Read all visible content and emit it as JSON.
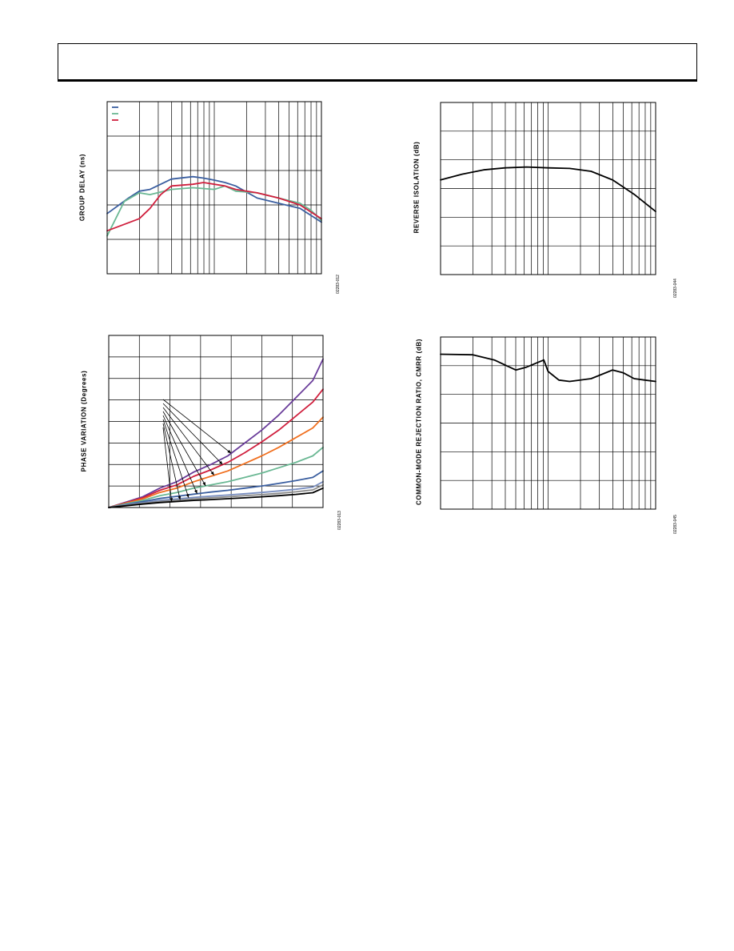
{
  "page": {
    "header_box": ""
  },
  "chart_data": [
    {
      "id": "group-delay",
      "type": "line",
      "title": "",
      "ylabel": "GROUP DELAY (ns)",
      "xlabel": "",
      "x_scale": "log",
      "x_decades": 2,
      "y_divisions": 5,
      "figure_number": "02283-012",
      "legend": {
        "position": "top-left",
        "entries": [
          "",
          "",
          ""
        ]
      },
      "series": [
        {
          "color": "#3b5fa0",
          "x": [
            0,
            0.1,
            0.15,
            0.2,
            0.3,
            0.4,
            0.45,
            0.5,
            0.55,
            0.6,
            0.7,
            0.8,
            0.9,
            0.95,
            1.0
          ],
          "y": [
            1.75,
            2.2,
            2.4,
            2.45,
            2.75,
            2.82,
            2.78,
            2.72,
            2.65,
            2.55,
            2.2,
            2.05,
            1.9,
            1.7,
            1.5
          ]
        },
        {
          "color": "#6bb894",
          "x": [
            0,
            0.08,
            0.15,
            0.2,
            0.3,
            0.4,
            0.5,
            0.55,
            0.6,
            0.7,
            0.8,
            0.9,
            0.95,
            1.0
          ],
          "y": [
            1.1,
            2.1,
            2.35,
            2.3,
            2.45,
            2.5,
            2.45,
            2.55,
            2.4,
            2.35,
            2.2,
            2.05,
            1.85,
            1.55
          ]
        },
        {
          "color": "#d0203e",
          "x": [
            0,
            0.15,
            0.2,
            0.25,
            0.3,
            0.4,
            0.45,
            0.55,
            0.6,
            0.7,
            0.8,
            0.9,
            0.95,
            1.0
          ],
          "y": [
            1.25,
            1.6,
            1.9,
            2.3,
            2.55,
            2.6,
            2.65,
            2.55,
            2.45,
            2.35,
            2.2,
            2.0,
            1.8,
            1.6
          ]
        }
      ]
    },
    {
      "id": "reverse-isolation",
      "type": "line",
      "title": "",
      "ylabel": "REVERSE ISOLATION (dB)",
      "xlabel": "",
      "x_scale": "log",
      "x_decades": 2,
      "y_divisions": 6,
      "figure_number": "02283-044",
      "series": [
        {
          "color": "#000000",
          "x": [
            0,
            0.1,
            0.2,
            0.3,
            0.4,
            0.5,
            0.6,
            0.7,
            0.8,
            0.9,
            1.0
          ],
          "y": [
            3.3,
            3.5,
            3.65,
            3.72,
            3.75,
            3.72,
            3.7,
            3.6,
            3.3,
            2.8,
            2.2
          ]
        }
      ]
    },
    {
      "id": "phase-variation",
      "type": "line",
      "title": "",
      "ylabel": "PHASE VARIATION (Degrees)",
      "xlabel": "",
      "x_scale": "linear",
      "x_divisions": 7,
      "y_divisions": 8,
      "figure_number": "02283-013",
      "series": [
        {
          "color": "#6a3d9a",
          "x": [
            0,
            0.5,
            1,
            1.5,
            2,
            2.5,
            3,
            3.5,
            4,
            4.5,
            5,
            5.5,
            6,
            6.3
          ],
          "y": [
            0,
            0.25,
            0.5,
            0.9,
            1.2,
            1.65,
            2.0,
            2.4,
            3.0,
            3.6,
            4.3,
            5.1,
            5.9,
            6.9
          ]
        },
        {
          "color": "#d0203e",
          "x": [
            0,
            0.5,
            1,
            1.5,
            2,
            2.5,
            3,
            3.5,
            4,
            4.5,
            5,
            5.5,
            6,
            6.3
          ],
          "y": [
            0,
            0.22,
            0.45,
            0.8,
            1.05,
            1.45,
            1.75,
            2.1,
            2.55,
            3.05,
            3.6,
            4.25,
            4.9,
            5.5
          ]
        },
        {
          "color": "#f07020",
          "x": [
            0,
            0.5,
            1,
            1.5,
            2,
            2.5,
            3,
            3.5,
            4,
            4.5,
            5,
            5.5,
            6,
            6.3
          ],
          "y": [
            0,
            0.2,
            0.4,
            0.7,
            0.9,
            1.2,
            1.45,
            1.7,
            2.05,
            2.4,
            2.8,
            3.25,
            3.7,
            4.2
          ]
        },
        {
          "color": "#6bb894",
          "x": [
            0,
            0.5,
            1,
            1.5,
            2,
            2.5,
            3,
            3.5,
            4,
            4.5,
            5,
            5.5,
            6,
            6.3
          ],
          "y": [
            0,
            0.17,
            0.33,
            0.55,
            0.7,
            0.9,
            1.05,
            1.2,
            1.4,
            1.6,
            1.85,
            2.1,
            2.4,
            2.8
          ]
        },
        {
          "color": "#3b5fa0",
          "x": [
            0,
            0.5,
            1,
            1.5,
            2,
            2.5,
            3,
            3.5,
            4,
            4.5,
            5,
            5.5,
            6,
            6.3
          ],
          "y": [
            0,
            0.14,
            0.27,
            0.42,
            0.52,
            0.62,
            0.72,
            0.8,
            0.9,
            1.0,
            1.12,
            1.25,
            1.4,
            1.7
          ]
        },
        {
          "color": "#7a8fc0",
          "x": [
            0,
            0.5,
            1,
            1.5,
            2,
            2.5,
            3,
            3.5,
            4,
            4.5,
            5,
            5.5,
            6,
            6.3
          ],
          "y": [
            0,
            0.12,
            0.22,
            0.33,
            0.4,
            0.47,
            0.53,
            0.58,
            0.64,
            0.7,
            0.77,
            0.85,
            0.95,
            1.2
          ]
        },
        {
          "color": "#8a8a8a",
          "x": [
            0,
            0.5,
            1,
            1.5,
            2,
            2.5,
            3,
            3.5,
            4,
            4.5,
            5,
            5.5,
            6,
            6.3
          ],
          "y": [
            0,
            0.1,
            0.19,
            0.28,
            0.34,
            0.4,
            0.45,
            0.5,
            0.55,
            0.6,
            0.66,
            0.73,
            0.82,
            1.05
          ]
        },
        {
          "color": "#000000",
          "x": [
            0,
            0.5,
            1,
            1.5,
            2,
            2.5,
            3,
            3.5,
            4,
            4.5,
            5,
            5.5,
            6,
            6.3
          ],
          "y": [
            0,
            0.08,
            0.16,
            0.23,
            0.28,
            0.33,
            0.37,
            0.41,
            0.45,
            0.5,
            0.55,
            0.61,
            0.69,
            0.9
          ]
        }
      ],
      "annotations": [
        "",
        "",
        "",
        "",
        "",
        "",
        "",
        ""
      ]
    },
    {
      "id": "cmrr",
      "type": "line",
      "title": "",
      "ylabel": "COMMON-MODE REJECTION RATIO, CMRR (dB)",
      "xlabel": "",
      "x_scale": "log",
      "x_decades": 2,
      "y_divisions": 6,
      "figure_number": "02283-045",
      "series": [
        {
          "color": "#000000",
          "x": [
            0,
            0.15,
            0.25,
            0.35,
            0.4,
            0.48,
            0.5,
            0.55,
            0.6,
            0.7,
            0.8,
            0.85,
            0.9,
            0.95,
            1.0
          ],
          "y": [
            5.4,
            5.38,
            5.2,
            4.85,
            4.95,
            5.2,
            4.8,
            4.5,
            4.45,
            4.55,
            4.85,
            4.75,
            4.55,
            4.5,
            4.45
          ]
        }
      ]
    }
  ]
}
